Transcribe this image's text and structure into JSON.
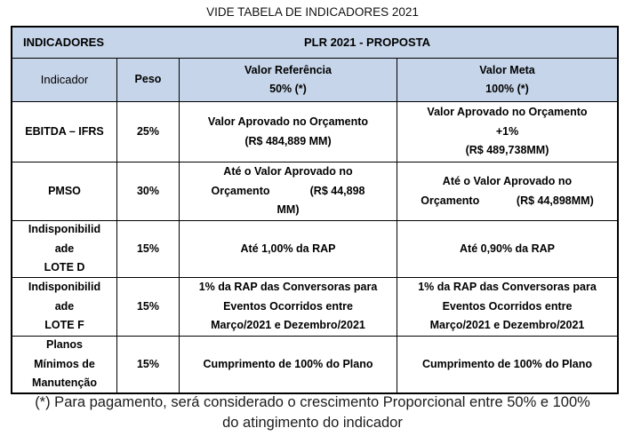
{
  "page": {
    "title": "VIDE TABELA DE INDICADORES 2021",
    "footnote_line1": "(*) Para pagamento, será considerado o crescimento Proporcional entre 50% e 100%",
    "footnote_line2": "do atingimento do indicador"
  },
  "colors": {
    "header_background": "#c6d5e9",
    "border": "#000000",
    "text": "#000000"
  },
  "table": {
    "header": {
      "indicadores_label": "INDICADORES",
      "proposta_label": "PLR 2021 - PROPOSTA"
    },
    "subheader": {
      "indicador": "Indicador",
      "peso": "Peso",
      "valor_referencia_line1": "Valor Referência",
      "valor_referencia_line2": "50% (*)",
      "valor_meta_line1": "Valor Meta",
      "valor_meta_line2": "100% (*)"
    },
    "rows": [
      {
        "indicator_lines": [
          "EBITDA – IFRS"
        ],
        "weight": "25%",
        "ref_lines": [
          "Valor Aprovado no Orçamento",
          "(R$ 484,889 MM)"
        ],
        "meta_lines": [
          "Valor Aprovado no Orçamento",
          "+1%",
          "(R$ 489,738MM)"
        ]
      },
      {
        "indicator_lines": [
          "PMSO"
        ],
        "weight": "30%",
        "ref_lines": [
          "Até o Valor Aprovado no",
          "Orçamento             (R$ 44,898",
          "MM)"
        ],
        "meta_lines": [
          "Até o Valor Aprovado no",
          "Orçamento            (R$ 44,898MM)"
        ]
      },
      {
        "indicator_lines": [
          "Indisponibilid",
          "ade",
          "LOTE D"
        ],
        "weight": "15%",
        "ref_lines": [
          "Até 1,00% da RAP"
        ],
        "meta_lines": [
          "Até 0,90% da RAP"
        ]
      },
      {
        "indicator_lines": [
          "Indisponibilid",
          "ade",
          "LOTE F"
        ],
        "weight": "15%",
        "ref_lines": [
          "1% da RAP das Conversoras para",
          "Eventos Ocorridos entre",
          "Março/2021 e Dezembro/2021"
        ],
        "meta_lines": [
          "1% da RAP das Conversoras para",
          "Eventos Ocorridos entre",
          "Março/2021 e Dezembro/2021"
        ]
      },
      {
        "indicator_lines": [
          "Planos",
          "Mínimos de",
          "Manutenção"
        ],
        "weight": "15%",
        "ref_lines": [
          "Cumprimento de 100% do Plano"
        ],
        "meta_lines": [
          "Cumprimento de 100% do Plano"
        ]
      }
    ]
  }
}
